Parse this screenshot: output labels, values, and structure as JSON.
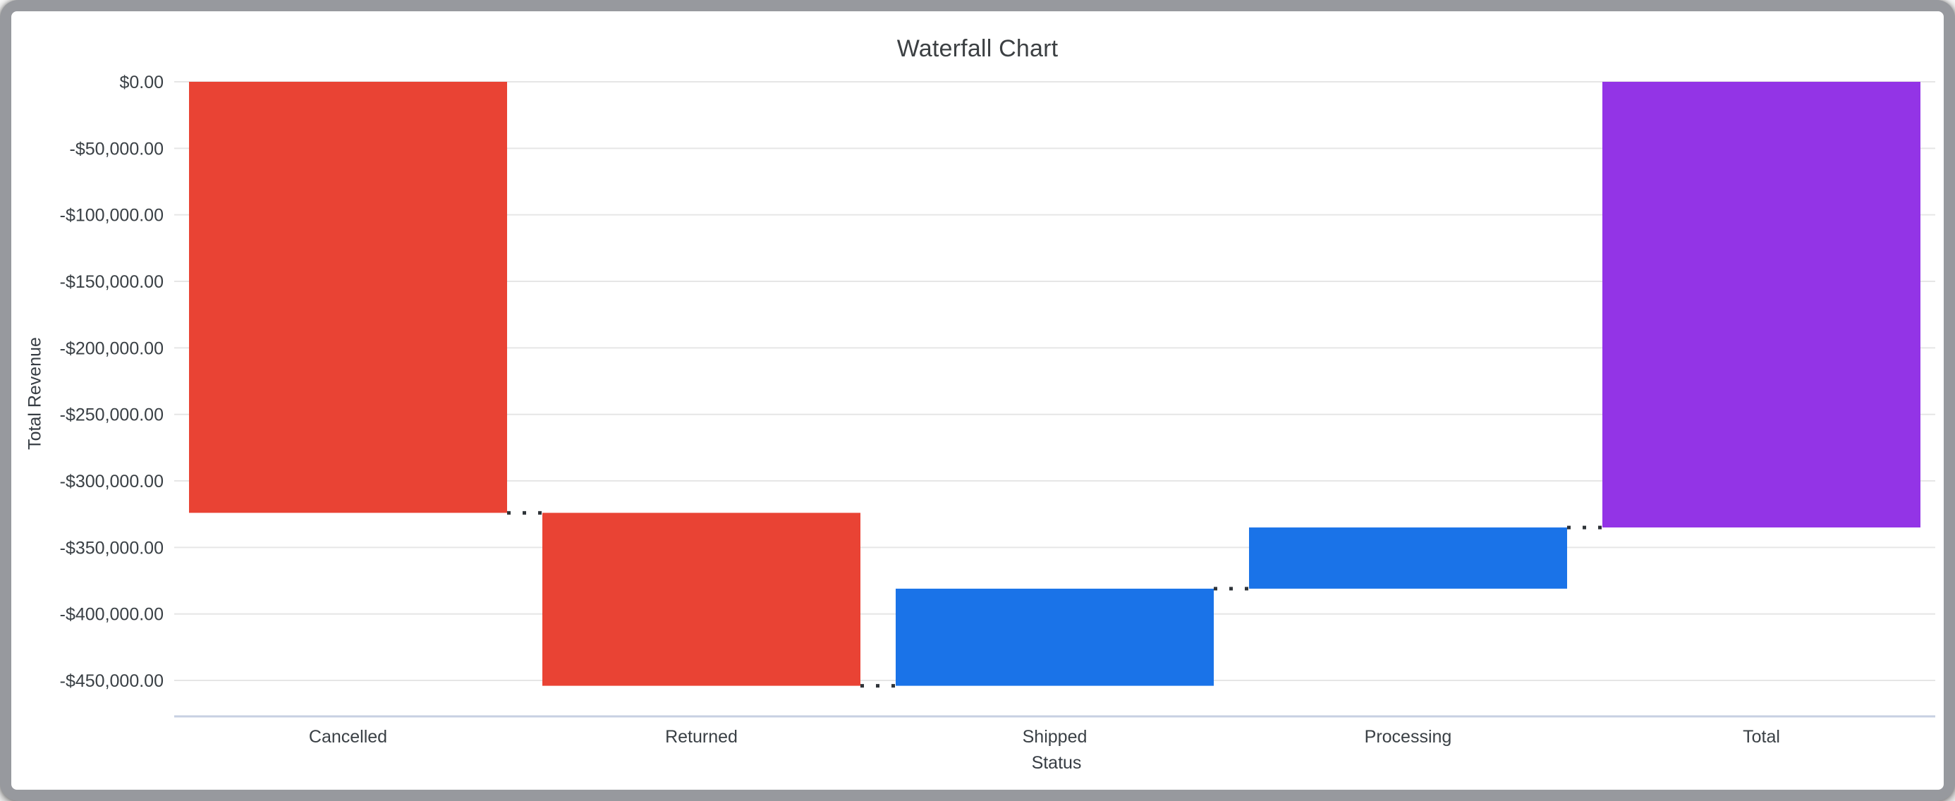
{
  "window": {
    "title": "Waterfall Chart"
  },
  "frame": {
    "border_color": "#97999E",
    "background_color": "#FFFFFF"
  },
  "chart_data": {
    "type": "waterfall",
    "title": "Waterfall Chart",
    "xlabel": "Status",
    "ylabel": "Total Revenue",
    "categories": [
      "Cancelled",
      "Returned",
      "Shipped",
      "Processing",
      "Total"
    ],
    "values": [
      -324000,
      -130000,
      73000,
      46000,
      -335000
    ],
    "is_total": [
      false,
      false,
      false,
      false,
      true
    ],
    "running_totals": [
      -324000,
      -454000,
      -381000,
      -335000,
      -335000
    ],
    "series": [
      {
        "name": "Cancelled",
        "start": 0,
        "end": -324000,
        "color": "#E94334"
      },
      {
        "name": "Returned",
        "start": -324000,
        "end": -454000,
        "color": "#E94334"
      },
      {
        "name": "Shipped",
        "start": -454000,
        "end": -381000,
        "color": "#1A73E8"
      },
      {
        "name": "Processing",
        "start": -381000,
        "end": -335000,
        "color": "#1A73E8"
      },
      {
        "name": "Total",
        "start": 0,
        "end": -335000,
        "color": "#9334E6"
      }
    ],
    "y_tick_labels": [
      "$0.00",
      "-$50,000.00",
      "-$100,000.00",
      "-$150,000.00",
      "-$200,000.00",
      "-$250,000.00",
      "-$300,000.00",
      "-$350,000.00",
      "-$400,000.00",
      "-$450,000.00"
    ],
    "y_tick_values": [
      0,
      -50000,
      -100000,
      -150000,
      -200000,
      -250000,
      -300000,
      -350000,
      -400000,
      -450000
    ],
    "ylim": [
      -477000,
      0
    ],
    "grid": true,
    "legend": "none",
    "colors": {
      "decrease": "#E94334",
      "increase": "#1A73E8",
      "total": "#9334E6",
      "gridline": "#E6E6E6",
      "axis_line": "#C7D0E2",
      "connector": "#2F3439",
      "text": "#3A4045",
      "title_text": "#3C4043"
    }
  }
}
